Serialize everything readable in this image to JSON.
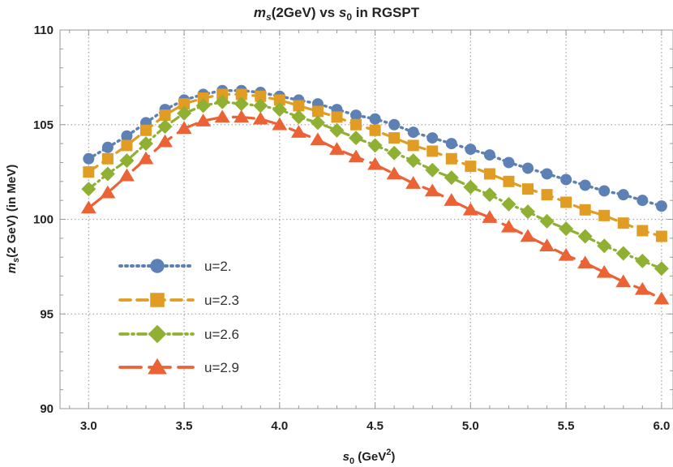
{
  "chart_data": {
    "type": "line",
    "title": {
      "prefix": "m",
      "prefix_sub": "s",
      "middle": "(2GeV) vs ",
      "var": "s",
      "var_sub": "0",
      "suffix": " in RGSPT"
    },
    "xlabel": {
      "var": "s",
      "var_sub": "0",
      "text": " (GeV",
      "sup": "2",
      "close": ")"
    },
    "ylabel": {
      "var": "m",
      "var_sub": "s",
      "text": "(2 GeV) (in MeV)"
    },
    "xlim": [
      2.85,
      6.06
    ],
    "ylim": [
      90,
      110
    ],
    "x_ticks": [
      3.0,
      3.5,
      4.0,
      4.5,
      5.0,
      5.5,
      6.0
    ],
    "x_tick_labels": [
      "3.0",
      "3.5",
      "4.0",
      "4.5",
      "5.0",
      "5.5",
      "6.0"
    ],
    "y_ticks": [
      90,
      95,
      100,
      105,
      110
    ],
    "y_tick_labels": [
      "90",
      "95",
      "100",
      "105",
      "110"
    ],
    "grid": true,
    "legend_position": "left",
    "x": [
      3.0,
      3.1,
      3.2,
      3.3,
      3.4,
      3.5,
      3.6,
      3.7,
      3.8,
      3.9,
      4.0,
      4.1,
      4.2,
      4.3,
      4.4,
      4.5,
      4.6,
      4.7,
      4.8,
      4.9,
      5.0,
      5.1,
      5.2,
      5.3,
      5.4,
      5.5,
      5.6,
      5.7,
      5.8,
      5.9,
      6.0
    ],
    "series": [
      {
        "name": "u=2.",
        "color": "#5E81B5",
        "marker": "circle",
        "dash": "dotted",
        "values": [
          103.2,
          103.8,
          104.4,
          105.1,
          105.8,
          106.3,
          106.6,
          106.8,
          106.8,
          106.7,
          106.5,
          106.3,
          106.1,
          105.8,
          105.5,
          105.3,
          105.0,
          104.6,
          104.3,
          104.0,
          103.7,
          103.4,
          103.0,
          102.7,
          102.4,
          102.1,
          101.8,
          101.5,
          101.3,
          101.0,
          100.7
        ]
      },
      {
        "name": "u=2.3",
        "color": "#E19C24",
        "marker": "square",
        "dash": "dashed",
        "values": [
          102.5,
          103.2,
          103.9,
          104.7,
          105.5,
          106.1,
          106.4,
          106.6,
          106.6,
          106.5,
          106.3,
          106.0,
          105.7,
          105.4,
          105.0,
          104.7,
          104.3,
          103.9,
          103.6,
          103.2,
          102.8,
          102.4,
          102.0,
          101.6,
          101.3,
          100.9,
          100.5,
          100.2,
          99.8,
          99.4,
          99.1
        ]
      },
      {
        "name": "u=2.6",
        "color": "#8FB032",
        "marker": "diamond",
        "dash": "dashdot",
        "values": [
          101.6,
          102.4,
          103.1,
          104.0,
          104.9,
          105.6,
          106.0,
          106.2,
          106.1,
          106.0,
          105.8,
          105.4,
          105.1,
          104.7,
          104.3,
          103.9,
          103.5,
          103.1,
          102.6,
          102.2,
          101.7,
          101.3,
          100.8,
          100.4,
          99.9,
          99.5,
          99.1,
          98.6,
          98.2,
          97.8,
          97.4
        ]
      },
      {
        "name": "u=2.9",
        "color": "#EB6235",
        "marker": "triangle",
        "dash": "longdash",
        "values": [
          100.6,
          101.4,
          102.3,
          103.2,
          104.1,
          104.8,
          105.2,
          105.4,
          105.4,
          105.3,
          105.0,
          104.6,
          104.2,
          103.7,
          103.3,
          102.9,
          102.4,
          101.9,
          101.5,
          101.0,
          100.5,
          100.1,
          99.6,
          99.1,
          98.6,
          98.1,
          97.7,
          97.2,
          96.7,
          96.3,
          95.8
        ]
      }
    ]
  }
}
